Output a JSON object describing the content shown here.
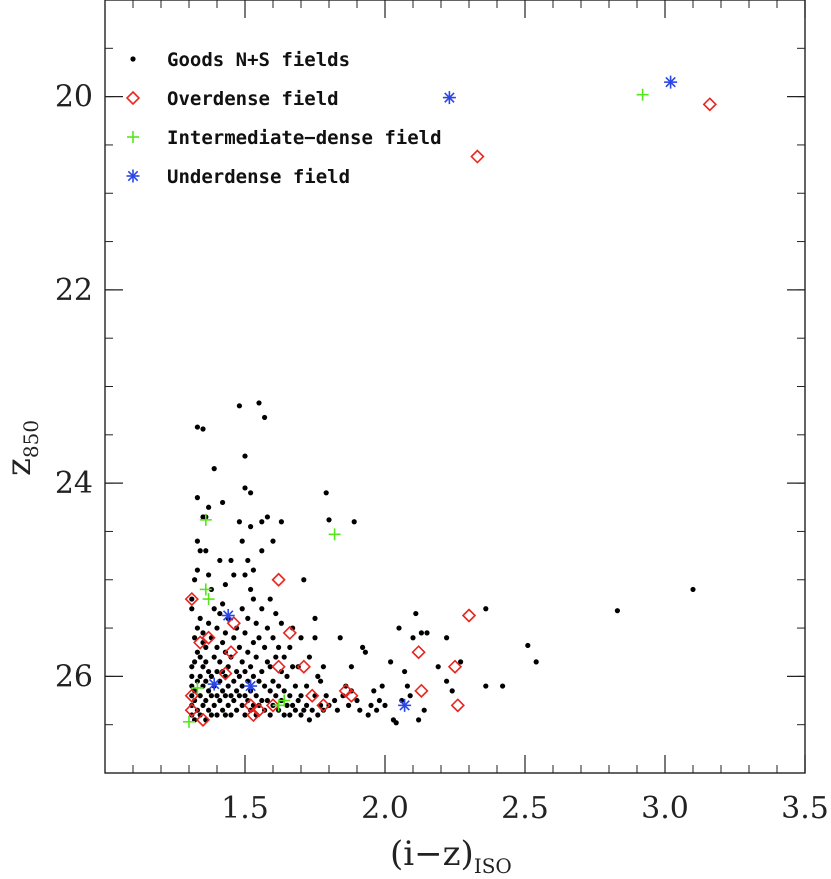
{
  "chart_data": {
    "type": "scatter",
    "title": "",
    "xlabel": "(i−z)",
    "xlabel_sub": "ISO",
    "ylabel": "z",
    "ylabel_sub": "850",
    "xlim": [
      1.0,
      3.5
    ],
    "ylim": [
      27.0,
      19.0
    ],
    "y_inverted": true,
    "xticks": [
      1.5,
      2.0,
      2.5,
      3.0,
      3.5
    ],
    "xtick_labels": [
      "1.5",
      "2.0",
      "2.5",
      "3.0",
      "3.5"
    ],
    "yticks": [
      20,
      22,
      24,
      26
    ],
    "ytick_labels": [
      "20",
      "22",
      "24",
      "26"
    ],
    "x_minor_step": 0.1,
    "y_minor_step": 0.5,
    "grid": false,
    "legend_position": "top-left",
    "series": [
      {
        "name": "Goods N+S fields",
        "marker": "dot",
        "color": "#000000",
        "points": [
          [
            1.31,
            26.4
          ],
          [
            1.31,
            26.3
          ],
          [
            1.31,
            26.2
          ],
          [
            1.31,
            26.1
          ],
          [
            1.31,
            26.0
          ],
          [
            1.31,
            25.9
          ],
          [
            1.31,
            25.3
          ],
          [
            1.31,
            25.2
          ],
          [
            1.32,
            26.45
          ],
          [
            1.32,
            26.25
          ],
          [
            1.32,
            26.15
          ],
          [
            1.32,
            25.85
          ],
          [
            1.32,
            25.6
          ],
          [
            1.32,
            25.0
          ],
          [
            1.33,
            26.35
          ],
          [
            1.33,
            26.05
          ],
          [
            1.33,
            25.75
          ],
          [
            1.33,
            25.5
          ],
          [
            1.33,
            24.9
          ],
          [
            1.33,
            24.6
          ],
          [
            1.33,
            24.15
          ],
          [
            1.33,
            23.42
          ],
          [
            1.34,
            26.4
          ],
          [
            1.34,
            26.2
          ],
          [
            1.34,
            26.0
          ],
          [
            1.34,
            25.8
          ],
          [
            1.34,
            25.4
          ],
          [
            1.34,
            24.7
          ],
          [
            1.35,
            26.3
          ],
          [
            1.35,
            26.1
          ],
          [
            1.35,
            25.9
          ],
          [
            1.35,
            25.65
          ],
          [
            1.35,
            25.55
          ],
          [
            1.35,
            24.35
          ],
          [
            1.35,
            23.44
          ],
          [
            1.36,
            26.45
          ],
          [
            1.36,
            26.25
          ],
          [
            1.36,
            26.05
          ],
          [
            1.36,
            25.85
          ],
          [
            1.36,
            25.7
          ],
          [
            1.36,
            24.7
          ],
          [
            1.36,
            24.35
          ],
          [
            1.37,
            26.35
          ],
          [
            1.37,
            26.15
          ],
          [
            1.37,
            25.95
          ],
          [
            1.37,
            25.45
          ],
          [
            1.37,
            24.95
          ],
          [
            1.37,
            24.25
          ],
          [
            1.38,
            26.4
          ],
          [
            1.38,
            26.2
          ],
          [
            1.38,
            26.0
          ],
          [
            1.38,
            25.6
          ],
          [
            1.38,
            25.1
          ],
          [
            1.39,
            26.3
          ],
          [
            1.39,
            26.1
          ],
          [
            1.39,
            25.8
          ],
          [
            1.39,
            25.3
          ],
          [
            1.39,
            23.85
          ],
          [
            1.4,
            26.4
          ],
          [
            1.4,
            26.2
          ],
          [
            1.4,
            25.95
          ],
          [
            1.4,
            25.7
          ],
          [
            1.4,
            25.5
          ],
          [
            1.41,
            26.25
          ],
          [
            1.41,
            26.05
          ],
          [
            1.41,
            25.85
          ],
          [
            1.41,
            25.35
          ],
          [
            1.41,
            24.8
          ],
          [
            1.42,
            26.35
          ],
          [
            1.42,
            26.15
          ],
          [
            1.42,
            25.95
          ],
          [
            1.42,
            25.65
          ],
          [
            1.42,
            25.25
          ],
          [
            1.42,
            24.2
          ],
          [
            1.43,
            26.4
          ],
          [
            1.43,
            26.2
          ],
          [
            1.43,
            26.0
          ],
          [
            1.43,
            25.75
          ],
          [
            1.43,
            25.55
          ],
          [
            1.43,
            25.05
          ],
          [
            1.44,
            26.3
          ],
          [
            1.44,
            26.1
          ],
          [
            1.44,
            25.9
          ],
          [
            1.44,
            25.4
          ],
          [
            1.45,
            26.4
          ],
          [
            1.45,
            26.2
          ],
          [
            1.45,
            25.8
          ],
          [
            1.45,
            24.8
          ],
          [
            1.46,
            26.25
          ],
          [
            1.46,
            26.05
          ],
          [
            1.46,
            25.6
          ],
          [
            1.46,
            24.95
          ],
          [
            1.47,
            26.35
          ],
          [
            1.47,
            26.15
          ],
          [
            1.47,
            25.95
          ],
          [
            1.47,
            25.5
          ],
          [
            1.48,
            26.2
          ],
          [
            1.48,
            26.0
          ],
          [
            1.48,
            25.7
          ],
          [
            1.48,
            24.4
          ],
          [
            1.48,
            23.2
          ],
          [
            1.49,
            26.3
          ],
          [
            1.49,
            26.1
          ],
          [
            1.49,
            25.85
          ],
          [
            1.49,
            25.3
          ],
          [
            1.49,
            24.6
          ],
          [
            1.5,
            26.4
          ],
          [
            1.5,
            26.2
          ],
          [
            1.5,
            25.95
          ],
          [
            1.5,
            25.55
          ],
          [
            1.5,
            24.95
          ],
          [
            1.5,
            24.05
          ],
          [
            1.5,
            23.72
          ],
          [
            1.51,
            26.25
          ],
          [
            1.51,
            26.05
          ],
          [
            1.51,
            25.75
          ],
          [
            1.51,
            25.4
          ],
          [
            1.51,
            24.8
          ],
          [
            1.52,
            26.35
          ],
          [
            1.52,
            26.15
          ],
          [
            1.52,
            25.9
          ],
          [
            1.52,
            25.1
          ],
          [
            1.52,
            24.45
          ],
          [
            1.52,
            24.1
          ],
          [
            1.53,
            26.3
          ],
          [
            1.53,
            26.0
          ],
          [
            1.53,
            25.65
          ],
          [
            1.53,
            25.2
          ],
          [
            1.53,
            24.9
          ],
          [
            1.54,
            26.4
          ],
          [
            1.54,
            26.2
          ],
          [
            1.54,
            25.8
          ],
          [
            1.54,
            25.45
          ],
          [
            1.55,
            26.3
          ],
          [
            1.55,
            26.05
          ],
          [
            1.55,
            25.6
          ],
          [
            1.55,
            23.17
          ],
          [
            1.56,
            26.25
          ],
          [
            1.56,
            25.95
          ],
          [
            1.56,
            25.3
          ],
          [
            1.56,
            24.7
          ],
          [
            1.56,
            24.4
          ],
          [
            1.57,
            26.35
          ],
          [
            1.57,
            26.1
          ],
          [
            1.57,
            25.7
          ],
          [
            1.57,
            23.32
          ],
          [
            1.58,
            26.25
          ],
          [
            1.58,
            25.85
          ],
          [
            1.58,
            25.5
          ],
          [
            1.58,
            24.35
          ],
          [
            1.59,
            26.4
          ],
          [
            1.59,
            26.15
          ],
          [
            1.59,
            25.9
          ],
          [
            1.59,
            25.2
          ],
          [
            1.6,
            26.3
          ],
          [
            1.6,
            26.05
          ],
          [
            1.6,
            25.6
          ],
          [
            1.6,
            24.6
          ],
          [
            1.61,
            26.2
          ],
          [
            1.61,
            25.8
          ],
          [
            1.61,
            25.35
          ],
          [
            1.62,
            26.35
          ],
          [
            1.62,
            26.1
          ],
          [
            1.62,
            25.7
          ],
          [
            1.63,
            26.25
          ],
          [
            1.63,
            25.95
          ],
          [
            1.63,
            25.45
          ],
          [
            1.63,
            24.4
          ],
          [
            1.64,
            26.4
          ],
          [
            1.64,
            26.15
          ],
          [
            1.64,
            25.8
          ],
          [
            1.65,
            26.3
          ],
          [
            1.65,
            26.0
          ],
          [
            1.66,
            26.4
          ],
          [
            1.66,
            26.2
          ],
          [
            1.66,
            25.7
          ],
          [
            1.67,
            26.3
          ],
          [
            1.67,
            25.9
          ],
          [
            1.67,
            25.5
          ],
          [
            1.68,
            26.35
          ],
          [
            1.68,
            26.1
          ],
          [
            1.69,
            26.25
          ],
          [
            1.69,
            25.9
          ],
          [
            1.7,
            26.4
          ],
          [
            1.7,
            26.2
          ],
          [
            1.7,
            25.6
          ],
          [
            1.71,
            26.35
          ],
          [
            1.71,
            25.0
          ],
          [
            1.72,
            26.3
          ],
          [
            1.72,
            26.1
          ],
          [
            1.73,
            26.45
          ],
          [
            1.73,
            25.8
          ],
          [
            1.74,
            26.35
          ],
          [
            1.75,
            26.2
          ],
          [
            1.75,
            25.6
          ],
          [
            1.75,
            25.4
          ],
          [
            1.76,
            26.4
          ],
          [
            1.76,
            26.0
          ],
          [
            1.77,
            26.3
          ],
          [
            1.77,
            26.05
          ],
          [
            1.78,
            26.35
          ],
          [
            1.78,
            25.9
          ],
          [
            1.79,
            26.2
          ],
          [
            1.79,
            24.1
          ],
          [
            1.8,
            26.3
          ],
          [
            1.8,
            24.38
          ],
          [
            1.82,
            26.25
          ],
          [
            1.83,
            26.35
          ],
          [
            1.84,
            25.6
          ],
          [
            1.85,
            26.2
          ],
          [
            1.86,
            26.1
          ],
          [
            1.87,
            26.3
          ],
          [
            1.88,
            25.9
          ],
          [
            1.88,
            26.15
          ],
          [
            1.89,
            24.4
          ],
          [
            1.9,
            26.25
          ],
          [
            1.91,
            26.35
          ],
          [
            1.92,
            25.7
          ],
          [
            1.93,
            25.75
          ],
          [
            1.94,
            26.4
          ],
          [
            1.95,
            26.3
          ],
          [
            1.96,
            26.15
          ],
          [
            1.97,
            26.35
          ],
          [
            1.98,
            26.25
          ],
          [
            1.99,
            26.1
          ],
          [
            2.0,
            26.3
          ],
          [
            2.02,
            25.85
          ],
          [
            2.03,
            26.45
          ],
          [
            2.04,
            26.48
          ],
          [
            2.05,
            25.5
          ],
          [
            2.06,
            26.25
          ],
          [
            2.07,
            25.95
          ],
          [
            2.08,
            26.1
          ],
          [
            2.09,
            26.2
          ],
          [
            2.1,
            25.6
          ],
          [
            2.11,
            25.35
          ],
          [
            2.12,
            26.45
          ],
          [
            2.13,
            25.55
          ],
          [
            2.14,
            26.35
          ],
          [
            2.15,
            25.55
          ],
          [
            2.19,
            25.9
          ],
          [
            2.22,
            25.6
          ],
          [
            2.22,
            26.05
          ],
          [
            2.24,
            26.15
          ],
          [
            2.27,
            25.85
          ],
          [
            2.36,
            25.3
          ],
          [
            2.36,
            26.1
          ],
          [
            2.42,
            26.1
          ],
          [
            2.51,
            25.68
          ],
          [
            2.54,
            25.85
          ],
          [
            2.83,
            25.32
          ],
          [
            3.1,
            25.1
          ]
        ]
      },
      {
        "name": "Overdense field",
        "marker": "diamond",
        "color": "#e8251f",
        "points": [
          [
            1.31,
            25.2
          ],
          [
            1.31,
            26.2
          ],
          [
            1.31,
            26.35
          ],
          [
            1.34,
            25.65
          ],
          [
            1.35,
            26.45
          ],
          [
            1.37,
            25.6
          ],
          [
            1.43,
            25.97
          ],
          [
            1.45,
            25.75
          ],
          [
            1.46,
            25.45
          ],
          [
            1.52,
            26.3
          ],
          [
            1.53,
            26.4
          ],
          [
            1.55,
            26.35
          ],
          [
            1.6,
            26.3
          ],
          [
            1.62,
            25.0
          ],
          [
            1.62,
            25.9
          ],
          [
            1.66,
            25.55
          ],
          [
            1.71,
            25.9
          ],
          [
            1.74,
            26.2
          ],
          [
            1.78,
            26.3
          ],
          [
            1.86,
            26.15
          ],
          [
            1.88,
            26.2
          ],
          [
            2.12,
            25.75
          ],
          [
            2.13,
            26.15
          ],
          [
            2.25,
            25.9
          ],
          [
            2.26,
            26.3
          ],
          [
            2.3,
            25.37
          ],
          [
            2.33,
            20.62
          ],
          [
            3.16,
            20.08
          ]
        ]
      },
      {
        "name": "Intermediate−dense field",
        "marker": "plus",
        "color": "#55e619",
        "points": [
          [
            1.3,
            26.47
          ],
          [
            1.33,
            26.12
          ],
          [
            1.36,
            24.38
          ],
          [
            1.36,
            25.1
          ],
          [
            1.37,
            25.2
          ],
          [
            1.62,
            26.3
          ],
          [
            1.64,
            26.25
          ],
          [
            1.82,
            24.53
          ],
          [
            2.92,
            19.98
          ]
        ]
      },
      {
        "name": "Underdense field",
        "marker": "asterisk",
        "color": "#2b46e8",
        "points": [
          [
            1.39,
            26.08
          ],
          [
            1.44,
            25.37
          ],
          [
            1.52,
            26.1
          ],
          [
            2.07,
            26.3
          ],
          [
            2.23,
            20.01
          ],
          [
            3.02,
            19.85
          ]
        ]
      }
    ]
  }
}
